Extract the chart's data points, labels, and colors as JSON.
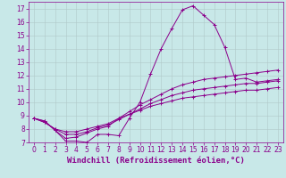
{
  "title": "",
  "xlabel": "Windchill (Refroidissement éolien,°C)",
  "bg_color": "#c8e8e8",
  "line_color": "#8b008b",
  "xlim": [
    -0.5,
    23.5
  ],
  "ylim": [
    7,
    17.5
  ],
  "yticks": [
    7,
    8,
    9,
    10,
    11,
    12,
    13,
    14,
    15,
    16,
    17
  ],
  "xticks": [
    0,
    1,
    2,
    3,
    4,
    5,
    6,
    7,
    8,
    9,
    10,
    11,
    12,
    13,
    14,
    15,
    16,
    17,
    18,
    19,
    20,
    21,
    22,
    23
  ],
  "series": [
    [
      8.8,
      8.6,
      7.9,
      7.1,
      7.1,
      7.0,
      7.6,
      7.6,
      7.5,
      8.8,
      10.0,
      12.1,
      14.0,
      15.5,
      16.9,
      17.2,
      16.5,
      15.8,
      14.1,
      11.7,
      11.8,
      11.5,
      11.6,
      11.7
    ],
    [
      8.8,
      8.6,
      7.9,
      7.3,
      7.4,
      7.7,
      8.0,
      8.2,
      8.8,
      9.3,
      9.8,
      10.2,
      10.6,
      11.0,
      11.3,
      11.5,
      11.7,
      11.8,
      11.9,
      12.0,
      12.1,
      12.2,
      12.3,
      12.4
    ],
    [
      8.8,
      8.5,
      8.0,
      7.6,
      7.6,
      7.8,
      8.1,
      8.3,
      8.7,
      9.1,
      9.5,
      9.9,
      10.2,
      10.5,
      10.7,
      10.9,
      11.0,
      11.1,
      11.2,
      11.3,
      11.4,
      11.4,
      11.5,
      11.6
    ],
    [
      8.8,
      8.5,
      8.0,
      7.8,
      7.8,
      8.0,
      8.2,
      8.4,
      8.8,
      9.1,
      9.4,
      9.7,
      9.9,
      10.1,
      10.3,
      10.4,
      10.5,
      10.6,
      10.7,
      10.8,
      10.9,
      10.9,
      11.0,
      11.1
    ]
  ],
  "grid_color": "#b0c8c8",
  "font_color": "#8b008b",
  "tick_fontsize": 5.5,
  "xlabel_fontsize": 6.5,
  "marker_size": 2.5,
  "linewidth": 0.7
}
